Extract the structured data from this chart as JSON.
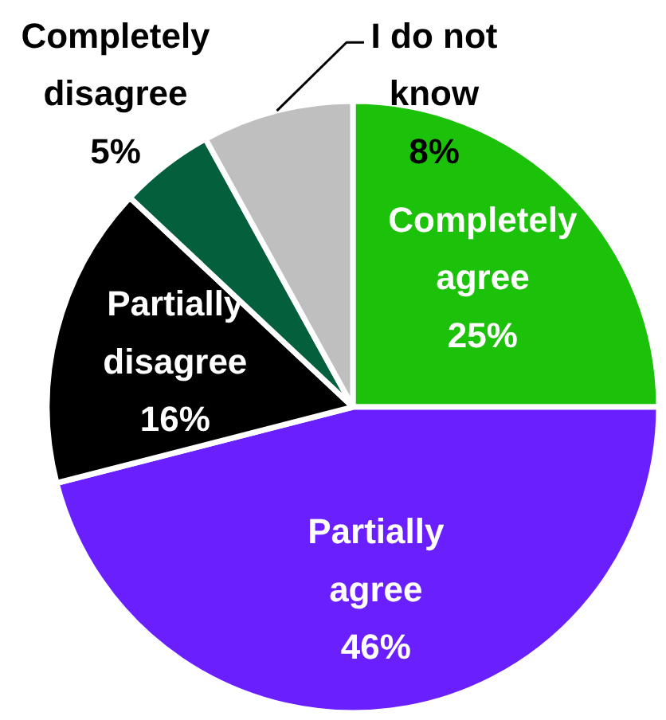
{
  "chart_data": {
    "type": "pie",
    "categories": [
      "Completely agree",
      "Partially agree",
      "Partially disagree",
      "Completely disagree",
      "I do not know"
    ],
    "values": [
      25,
      46,
      16,
      5,
      8
    ],
    "colors": [
      "#1cc10a",
      "#6a1fff",
      "#000000",
      "#045f3d",
      "#bfbfbf"
    ],
    "value_labels": [
      "25%",
      "46%",
      "16%",
      "5%",
      "8%"
    ]
  }
}
